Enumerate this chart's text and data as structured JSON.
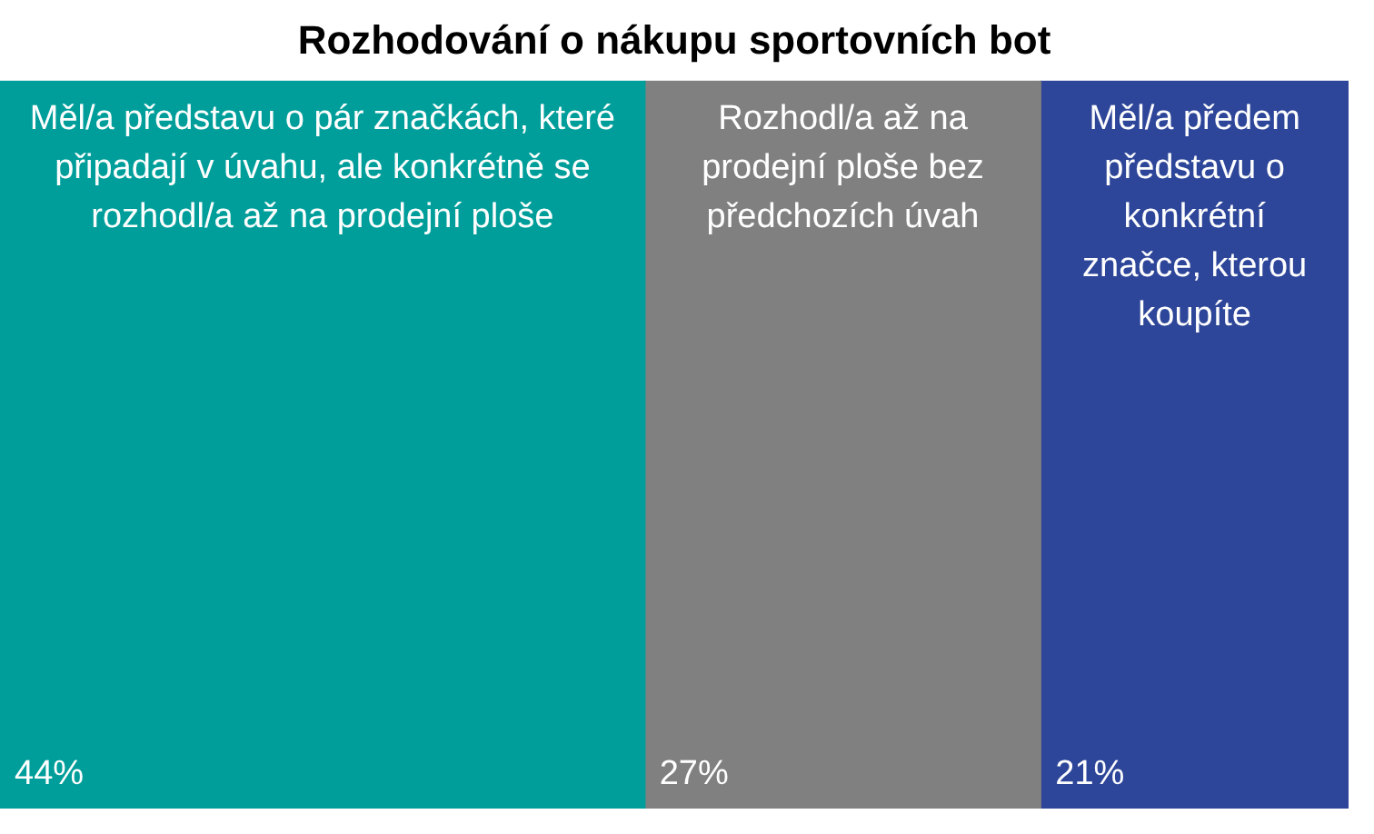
{
  "chart_data": {
    "type": "other",
    "title": "Rozhodování o nákupu sportovních bot",
    "categories": [
      "Měl/a představu o pár značkách, které připadají v úvahu, ale konkrétně se rozhodl/a až na prodejní ploše",
      "Rozhodl/a až na prodejní ploše bez předchozích úvah",
      "Měl/a předem představu o konkrétní značce, kterou koupíte"
    ],
    "values": [
      44,
      27,
      21
    ],
    "colors": [
      "#009e9a",
      "#808080",
      "#2e4699"
    ],
    "value_labels": [
      "44%",
      "27%",
      "21%"
    ]
  }
}
